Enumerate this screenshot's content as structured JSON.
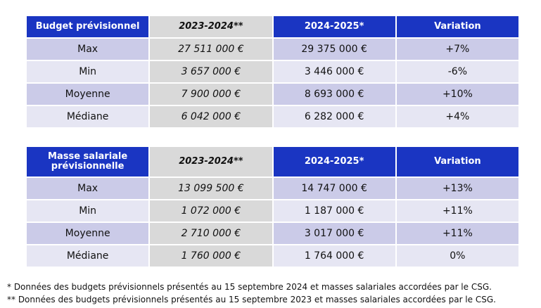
{
  "tables": [
    {
      "headers": [
        "Budget prévisionnel",
        "2023-2024**",
        "2024-2025*",
        "Variation"
      ],
      "rows": [
        [
          "Max",
          "27 511 000 €",
          "29 375 000 €",
          "+7%"
        ],
        [
          "Min",
          "3 657 000 €",
          "3 446 000 €",
          "-6%"
        ],
        [
          "Moyenne",
          "7 900 000 €",
          "8 693 000 €",
          "+10%"
        ],
        [
          "Médiane",
          "6 042 000 €",
          "6 282 000 €",
          "+4%"
        ]
      ]
    },
    {
      "headers": [
        "Masse salariale prévisionnelle",
        "2023-2024**",
        "2024-2025*",
        "Variation"
      ],
      "rows": [
        [
          "Max",
          "13 099 500 €",
          "14 747 000 €",
          "+13%"
        ],
        [
          "Min",
          "1 072 000 €",
          "1 187 000 €",
          "+11%"
        ],
        [
          "Moyenne",
          "2 710 000 €",
          "3 017 000 €",
          "+11%"
        ],
        [
          "Médiane",
          "1 760 000 €",
          "1 764 000 €",
          "0%"
        ]
      ]
    }
  ],
  "notes": [
    "* Données des budgets prévisionnels présentés au 15 septembre 2024 et masses salariales accordées par le CSG.",
    "** Données des budgets prévisionnels présentés au 15 septembre 2023 et masses salariales accordées par le CSG."
  ],
  "colors": {
    "header": "#1a35c2",
    "row_dark": "#cbcbe8",
    "row_light": "#e6e6f3",
    "prior_year": "#d9d9d9"
  }
}
